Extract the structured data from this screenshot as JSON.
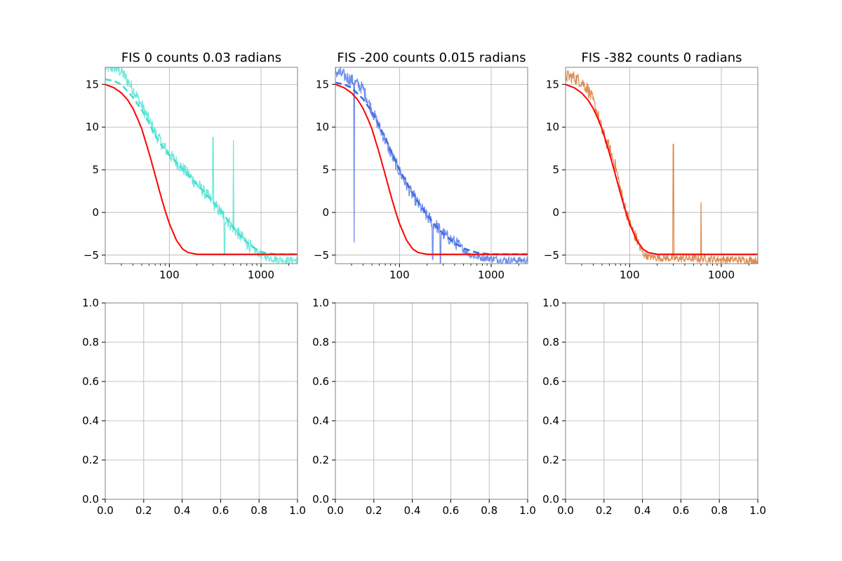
{
  "figure": {
    "background": "#ffffff"
  },
  "chart_data": [
    {
      "type": "line",
      "title": "FIS 0 counts 0.03 radians",
      "xscale": "log",
      "xlim": [
        20,
        2500
      ],
      "ylim": [
        -6,
        17
      ],
      "xticks": [
        100,
        1000
      ],
      "xtick_labels": [
        "100",
        "1000"
      ],
      "yticks": [
        -5,
        0,
        5,
        10,
        15
      ],
      "ytick_labels": [
        "−5",
        "0",
        "5",
        "10",
        "15"
      ],
      "grid": true,
      "series": [
        {
          "style": "noisy-data",
          "color": "#40e0d0",
          "spikes": [
            [
              300,
              8.8
            ],
            [
              400,
              -5
            ],
            [
              500,
              8.5
            ]
          ],
          "x": [
            20,
            25,
            30,
            40,
            50,
            60,
            70,
            80,
            100,
            130,
            160,
            200,
            250,
            300,
            400,
            500,
            600,
            700,
            800,
            1000,
            1200,
            1500,
            2000,
            2500
          ],
          "y": [
            17,
            17,
            16.5,
            14.5,
            12.5,
            10.8,
            9.3,
            8.3,
            6.8,
            5.5,
            4.5,
            3.3,
            2.2,
            1.1,
            -0.5,
            -1.8,
            -2.8,
            -3.5,
            -4.2,
            -5,
            -5.3,
            -5.5,
            -5.6,
            -5.6
          ]
        },
        {
          "style": "dashed-fit",
          "color": "#40e0d0",
          "x": [
            20,
            25,
            30,
            40,
            50,
            60,
            70,
            80,
            100,
            130,
            160,
            200,
            250,
            300,
            400,
            500,
            600,
            700,
            800,
            1000,
            1200,
            1500,
            2000,
            2500
          ],
          "y": [
            15.6,
            15.4,
            15,
            13.5,
            12,
            10.5,
            9,
            8,
            6.8,
            5.4,
            4.4,
            3.3,
            2.2,
            1.2,
            -0.4,
            -1.8,
            -2.8,
            -3.5,
            -4,
            -4.6,
            -4.8,
            -4.9,
            -4.9,
            -4.9
          ]
        },
        {
          "style": "model",
          "color": "#ff0000",
          "x": [
            20,
            25,
            30,
            35,
            40,
            45,
            50,
            60,
            70,
            80,
            90,
            100,
            120,
            140,
            160,
            200,
            300,
            500,
            1000,
            2500
          ],
          "y": [
            15,
            14.6,
            14,
            13.2,
            12.2,
            11,
            9.8,
            7,
            4.4,
            2.1,
            0.2,
            -1.3,
            -3.3,
            -4.3,
            -4.7,
            -4.9,
            -4.9,
            -4.9,
            -4.9,
            -4.9
          ]
        }
      ]
    },
    {
      "type": "line",
      "title": "FIS -200 counts 0.015 radians",
      "xscale": "log",
      "xlim": [
        20,
        2500
      ],
      "ylim": [
        -6,
        17
      ],
      "xticks": [
        100,
        1000
      ],
      "xtick_labels": [
        "100",
        "1000"
      ],
      "yticks": [
        -5,
        0,
        5,
        10,
        15
      ],
      "ytick_labels": [
        "−5",
        "0",
        "5",
        "10",
        "15"
      ],
      "grid": true,
      "series": [
        {
          "style": "noisy-data",
          "color": "#4169e1",
          "spikes": [
            [
              32,
              -3.5
            ],
            [
              230,
              -5.5
            ],
            [
              280,
              -6
            ]
          ],
          "x": [
            20,
            25,
            30,
            40,
            50,
            60,
            70,
            80,
            100,
            130,
            160,
            200,
            250,
            300,
            400,
            500,
            600,
            700,
            800,
            1000,
            1200,
            1500,
            2000,
            2500
          ],
          "y": [
            16.5,
            16,
            15.5,
            14.5,
            12,
            10,
            8.5,
            7,
            4.8,
            2.5,
            1,
            -0.5,
            -1.5,
            -2.5,
            -3.5,
            -4.3,
            -5,
            -5.2,
            -5.3,
            -5.4,
            -5.5,
            -5.6,
            -5.6,
            -5.6
          ]
        },
        {
          "style": "dashed-fit",
          "color": "#4169e1",
          "x": [
            20,
            25,
            30,
            40,
            50,
            60,
            70,
            80,
            100,
            130,
            160,
            200,
            250,
            300,
            400,
            500,
            600,
            700,
            800,
            1000,
            1200,
            1500,
            2000,
            2500
          ],
          "y": [
            15.2,
            15,
            14.6,
            13.3,
            11.8,
            10.2,
            8.7,
            7.3,
            5,
            2.8,
            1.2,
            -0.3,
            -1.6,
            -2.5,
            -3.6,
            -4.2,
            -4.5,
            -4.7,
            -4.8,
            -4.9,
            -4.9,
            -4.9,
            -4.9,
            -4.9
          ]
        },
        {
          "style": "model",
          "color": "#ff0000",
          "x": [
            20,
            25,
            30,
            35,
            40,
            45,
            50,
            60,
            70,
            80,
            90,
            100,
            120,
            140,
            160,
            200,
            300,
            500,
            1000,
            2500
          ],
          "y": [
            15,
            14.6,
            14,
            13.2,
            12.2,
            11,
            9.8,
            7,
            4.4,
            2.1,
            0.2,
            -1.3,
            -3.3,
            -4.3,
            -4.7,
            -4.9,
            -4.9,
            -4.9,
            -4.9,
            -4.9
          ]
        }
      ]
    },
    {
      "type": "line",
      "title": "FIS -382 counts 0 radians",
      "xscale": "log",
      "xlim": [
        20,
        2500
      ],
      "ylim": [
        -6,
        17
      ],
      "xticks": [
        100,
        1000
      ],
      "xtick_labels": [
        "100",
        "1000"
      ],
      "yticks": [
        -5,
        0,
        5,
        10,
        15
      ],
      "ytick_labels": [
        "−5",
        "0",
        "5",
        "10",
        "15"
      ],
      "grid": true,
      "series": [
        {
          "style": "noisy-data",
          "color": "#d2691e",
          "spikes": [
            [
              300,
              8
            ],
            [
              600,
              1.2
            ],
            [
              130,
              -4.5
            ]
          ],
          "x": [
            20,
            25,
            30,
            35,
            40,
            45,
            50,
            60,
            70,
            80,
            90,
            100,
            120,
            140,
            160,
            200,
            300,
            500,
            1000,
            2500
          ],
          "y": [
            16,
            15.8,
            15.3,
            14.5,
            13,
            11.5,
            9.5,
            7.5,
            5.5,
            2.5,
            0.5,
            -1.3,
            -3.2,
            -4.8,
            -5.2,
            -5.3,
            -5.4,
            -5.4,
            -5.5,
            -5.6
          ]
        },
        {
          "style": "model",
          "color": "#ff0000",
          "x": [
            20,
            25,
            30,
            35,
            40,
            45,
            50,
            60,
            70,
            80,
            90,
            100,
            120,
            140,
            160,
            200,
            300,
            500,
            1000,
            2500
          ],
          "y": [
            15,
            14.6,
            14,
            13.2,
            12.2,
            11,
            9.8,
            7,
            4.4,
            2.1,
            0.2,
            -1.3,
            -3.3,
            -4.3,
            -4.7,
            -4.9,
            -4.9,
            -4.9,
            -4.9,
            -4.9
          ]
        }
      ]
    },
    {
      "type": "line",
      "title": "",
      "xscale": "linear",
      "xlim": [
        0,
        1
      ],
      "ylim": [
        0,
        1
      ],
      "xticks": [
        0,
        0.2,
        0.4,
        0.6,
        0.8,
        1
      ],
      "xtick_labels": [
        "0.0",
        "0.2",
        "0.4",
        "0.6",
        "0.8",
        "1.0"
      ],
      "yticks": [
        0,
        0.2,
        0.4,
        0.6,
        0.8,
        1
      ],
      "ytick_labels": [
        "0.0",
        "0.2",
        "0.4",
        "0.6",
        "0.8",
        "1.0"
      ],
      "grid": true,
      "series": []
    },
    {
      "type": "line",
      "title": "",
      "xscale": "linear",
      "xlim": [
        0,
        1
      ],
      "ylim": [
        0,
        1
      ],
      "xticks": [
        0,
        0.2,
        0.4,
        0.6,
        0.8,
        1
      ],
      "xtick_labels": [
        "0.0",
        "0.2",
        "0.4",
        "0.6",
        "0.8",
        "1.0"
      ],
      "yticks": [
        0,
        0.2,
        0.4,
        0.6,
        0.8,
        1
      ],
      "ytick_labels": [
        "0.0",
        "0.2",
        "0.4",
        "0.6",
        "0.8",
        "1.0"
      ],
      "grid": true,
      "series": []
    },
    {
      "type": "line",
      "title": "",
      "xscale": "linear",
      "xlim": [
        0,
        1
      ],
      "ylim": [
        0,
        1
      ],
      "xticks": [
        0,
        0.2,
        0.4,
        0.6,
        0.8,
        1
      ],
      "xtick_labels": [
        "0.0",
        "0.2",
        "0.4",
        "0.6",
        "0.8",
        "1.0"
      ],
      "yticks": [
        0,
        0.2,
        0.4,
        0.6,
        0.8,
        1
      ],
      "ytick_labels": [
        "0.0",
        "0.2",
        "0.4",
        "0.6",
        "0.8",
        "1.0"
      ],
      "grid": true,
      "series": []
    }
  ]
}
